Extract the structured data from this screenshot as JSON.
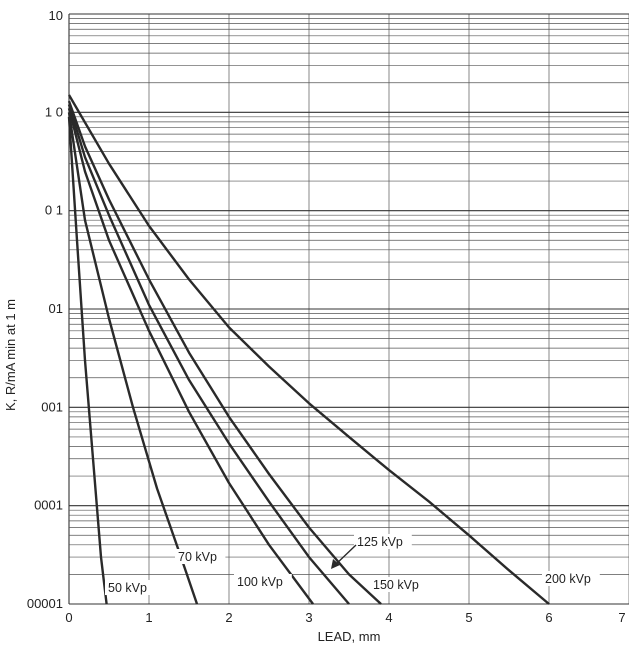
{
  "chart_data": {
    "type": "line",
    "title": "",
    "xlabel": "LEAD, mm",
    "ylabel": "K, R/mA min at 1 m",
    "x_ticks": [
      "0",
      "1",
      "2",
      "3",
      "4",
      "5",
      "6",
      "7"
    ],
    "y_ticks": [
      "10",
      "1 0",
      "0 1",
      "01",
      "001",
      "0001",
      "00001"
    ],
    "y_scale": "log",
    "xlim": [
      0,
      7
    ],
    "ylim": [
      1e-05,
      10
    ],
    "grid": true,
    "legend": "none",
    "series": [
      {
        "name": "50 kVp",
        "x": [
          0,
          0.1,
          0.2,
          0.3,
          0.4,
          0.47
        ],
        "y": [
          0.9,
          0.05,
          0.003,
          0.0003,
          3e-05,
          1e-05
        ]
      },
      {
        "name": "70 kVp",
        "x": [
          0,
          0.2,
          0.5,
          0.8,
          1.1,
          1.4,
          1.6
        ],
        "y": [
          1.0,
          0.08,
          0.008,
          0.001,
          0.00015,
          3e-05,
          1e-05
        ]
      },
      {
        "name": "100 kVp",
        "x": [
          0,
          0.2,
          0.5,
          1.0,
          1.5,
          2.0,
          2.5,
          3.05
        ],
        "y": [
          1.1,
          0.25,
          0.05,
          0.006,
          0.0009,
          0.00017,
          4e-05,
          1e-05
        ]
      },
      {
        "name": "125 kVp",
        "x": [
          0,
          0.2,
          0.5,
          1.0,
          1.5,
          2.0,
          2.5,
          3.0,
          3.5
        ],
        "y": [
          1.2,
          0.35,
          0.09,
          0.011,
          0.0019,
          0.00043,
          0.00011,
          3e-05,
          1e-05
        ]
      },
      {
        "name": "150 kVp",
        "x": [
          0,
          0.2,
          0.5,
          1.0,
          1.5,
          2.0,
          2.5,
          3.0,
          3.5,
          3.9
        ],
        "y": [
          1.3,
          0.45,
          0.13,
          0.02,
          0.0036,
          0.0008,
          0.00021,
          6e-05,
          2e-05,
          1e-05
        ]
      },
      {
        "name": "200 kVp",
        "x": [
          0,
          0.5,
          1.0,
          1.5,
          2.0,
          2.5,
          3.0,
          3.5,
          4.0,
          4.5,
          5.0,
          5.5,
          6.0
        ],
        "y": [
          1.5,
          0.3,
          0.07,
          0.02,
          0.0065,
          0.0026,
          0.0011,
          0.0005,
          0.00023,
          0.00011,
          5e-05,
          2.2e-05,
          1e-05
        ]
      }
    ],
    "annotations": [
      {
        "text": "50 kVp",
        "series": "50 kVp"
      },
      {
        "text": "70 kVp",
        "series": "70 kVp"
      },
      {
        "text": "100 kVp",
        "series": "100 kVp"
      },
      {
        "text": "125 kVp",
        "series": "125 kVp",
        "arrow": true
      },
      {
        "text": "150 kVp",
        "series": "150 kVp"
      },
      {
        "text": "200 kVp",
        "series": "200 kVp"
      }
    ]
  }
}
